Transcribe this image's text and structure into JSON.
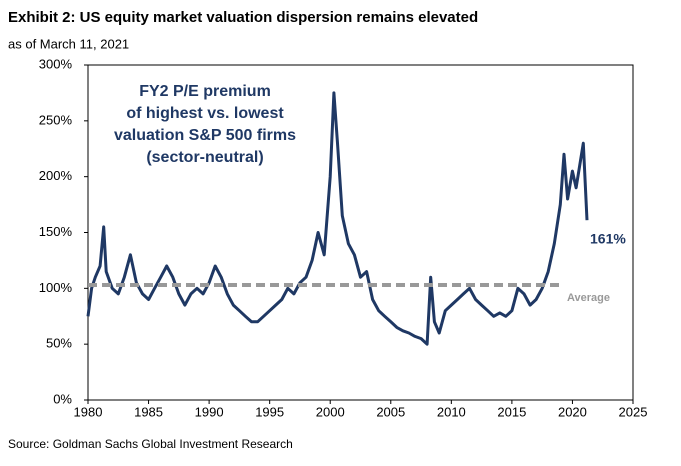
{
  "chart_data": {
    "type": "line",
    "title": "Exhibit 2: US equity market valuation dispersion remains elevated",
    "subtitle": "as of March 11, 2021",
    "source": "Source: Goldman Sachs Global Investment Research",
    "annotation": [
      "FY2 P/E premium",
      "of highest vs. lowest",
      "valuation S&P 500 firms",
      "(sector-neutral)"
    ],
    "end_label": "161%",
    "average": {
      "value": 103,
      "label": "Average",
      "color": "#999999"
    },
    "x": [
      1980.0,
      1980.3,
      1980.6,
      1981.0,
      1981.3,
      1981.5,
      1982.0,
      1982.5,
      1983.0,
      1983.5,
      1984.0,
      1984.5,
      1985.0,
      1985.5,
      1986.0,
      1986.5,
      1987.0,
      1987.5,
      1988.0,
      1988.5,
      1989.0,
      1989.5,
      1990.0,
      1990.5,
      1991.0,
      1991.5,
      1992.0,
      1992.5,
      1993.0,
      1993.5,
      1994.0,
      1994.5,
      1995.0,
      1995.5,
      1996.0,
      1996.5,
      1997.0,
      1997.5,
      1998.0,
      1998.5,
      1999.0,
      1999.5,
      2000.0,
      2000.3,
      2000.6,
      2001.0,
      2001.5,
      2002.0,
      2002.5,
      2003.0,
      2003.5,
      2004.0,
      2004.5,
      2005.0,
      2005.5,
      2006.0,
      2006.5,
      2007.0,
      2007.5,
      2008.0,
      2008.3,
      2008.6,
      2009.0,
      2009.5,
      2010.0,
      2010.5,
      2011.0,
      2011.5,
      2012.0,
      2012.5,
      2013.0,
      2013.5,
      2014.0,
      2014.5,
      2015.0,
      2015.5,
      2016.0,
      2016.5,
      2017.0,
      2017.5,
      2018.0,
      2018.5,
      2019.0,
      2019.3,
      2019.6,
      2020.0,
      2020.3,
      2020.6,
      2020.9,
      2021.2
    ],
    "series": [
      {
        "name": "FY2 P/E premium",
        "color": "#1f3864",
        "values": [
          75,
          100,
          110,
          120,
          155,
          115,
          100,
          95,
          110,
          130,
          105,
          95,
          90,
          100,
          110,
          120,
          110,
          95,
          85,
          95,
          100,
          95,
          105,
          120,
          110,
          95,
          85,
          80,
          75,
          70,
          70,
          75,
          80,
          85,
          90,
          100,
          95,
          105,
          110,
          125,
          150,
          130,
          200,
          275,
          230,
          165,
          140,
          130,
          110,
          115,
          90,
          80,
          75,
          70,
          65,
          62,
          60,
          57,
          55,
          50,
          110,
          70,
          60,
          80,
          85,
          90,
          95,
          100,
          90,
          85,
          80,
          75,
          78,
          75,
          80,
          100,
          95,
          85,
          90,
          100,
          115,
          140,
          175,
          220,
          180,
          205,
          190,
          210,
          230,
          161
        ]
      }
    ],
    "xlim": [
      1980,
      2025
    ],
    "xticks": [
      1980,
      1985,
      1990,
      1995,
      2000,
      2005,
      2010,
      2015,
      2020,
      2025
    ],
    "ylim": [
      0,
      300
    ],
    "yticks": [
      {
        "value": 0,
        "label": "0%"
      },
      {
        "value": 50,
        "label": "50%"
      },
      {
        "value": 100,
        "label": "100%"
      },
      {
        "value": 150,
        "label": "150%"
      },
      {
        "value": 200,
        "label": "200%"
      },
      {
        "value": 250,
        "label": "250%"
      },
      {
        "value": 300,
        "label": "300%"
      }
    ],
    "grid": false
  }
}
